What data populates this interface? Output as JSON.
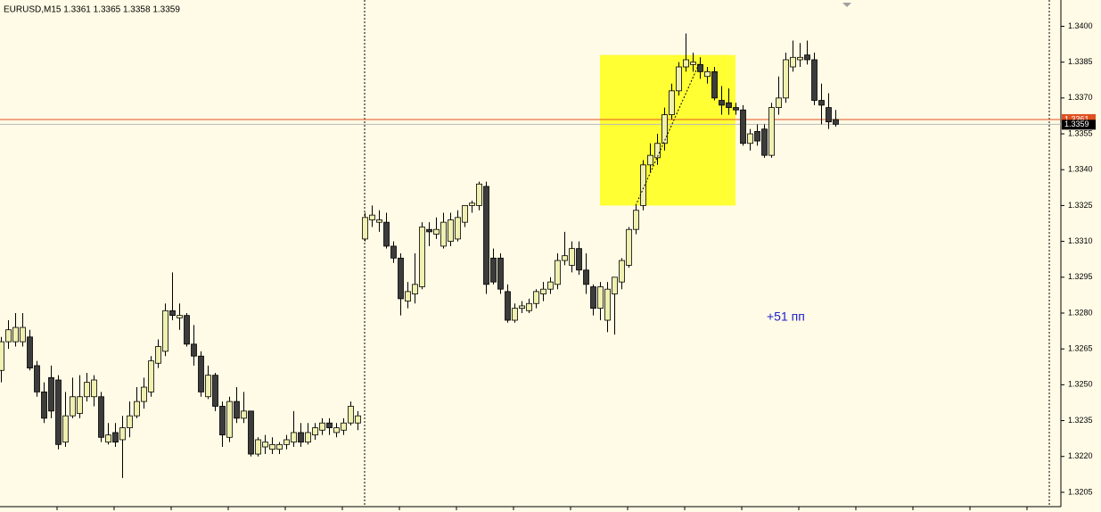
{
  "chart_data": {
    "type": "candlestick",
    "title": "EURUSD,M15  1.3361 1.3365 1.3358 1.3359",
    "annotation": "+51 пп",
    "open": [
      1.3256,
      1.3268,
      1.3268,
      1.3268,
      1.327,
      1.3258,
      1.3247,
      1.3253,
      1.3252,
      1.3226,
      1.3237,
      1.3238,
      1.3245,
      1.3245,
      1.3245,
      1.3226,
      1.323,
      1.3227,
      1.3232,
      1.3237,
      1.3243,
      1.3247,
      1.3259,
      1.3264,
      1.3281,
      1.3278,
      1.3279,
      1.3267,
      1.3262,
      1.3245,
      1.3254,
      1.3241,
      1.3228,
      1.3243,
      1.3236,
      1.3239,
      1.3221,
      1.3224,
      1.3223,
      1.3223,
      1.3225,
      1.3226,
      1.323,
      1.3226,
      1.3229,
      1.3231,
      1.3234,
      1.323,
      1.3231,
      1.3234,
      1.3234,
      1.3311,
      1.3319,
      1.3318,
      1.3318,
      1.3308,
      1.3303,
      1.3285,
      1.3288,
      1.3291,
      1.3315,
      1.3313,
      1.3308,
      1.331,
      1.3311,
      1.3318,
      1.3325,
      1.3325,
      1.3333,
      1.3303,
      1.3303,
      1.3289,
      1.3277,
      1.3282,
      1.3281,
      1.3284,
      1.3288,
      1.329,
      1.3292,
      1.3302,
      1.33,
      1.3307,
      1.3298,
      1.3291,
      1.3282,
      1.3277,
      1.3288,
      1.3293,
      1.33,
      1.3315,
      1.3325,
      1.3342,
      1.3345,
      1.3351,
      1.3363,
      1.3373,
      1.3383,
      1.3384,
      1.3384,
      1.3379,
      1.3381,
      1.3369,
      1.3368,
      1.3366,
      1.3365,
      1.3351,
      1.3356,
      1.3357,
      1.3346,
      1.3366,
      1.337,
      1.3383,
      1.3386,
      1.3388,
      1.3386,
      1.3369,
      1.3366,
      1.3361
    ],
    "high": [
      1.327,
      1.3277,
      1.328,
      1.328,
      1.3273,
      1.326,
      1.3251,
      1.3258,
      1.3254,
      1.3247,
      1.3253,
      1.3254,
      1.3255,
      1.3254,
      1.3247,
      1.3234,
      1.3234,
      1.3237,
      1.3243,
      1.3249,
      1.3253,
      1.3262,
      1.3269,
      1.3284,
      1.3297,
      1.3284,
      1.328,
      1.3275,
      1.3264,
      1.3258,
      1.3255,
      1.3243,
      1.3245,
      1.3249,
      1.3247,
      1.3239,
      1.3228,
      1.3229,
      1.3228,
      1.3226,
      1.3229,
      1.3239,
      1.3234,
      1.3234,
      1.3234,
      1.3236,
      1.3236,
      1.3234,
      1.3236,
      1.3243,
      1.3239,
      1.3322,
      1.3325,
      1.3323,
      1.3322,
      1.331,
      1.3305,
      1.3293,
      1.3305,
      1.3318,
      1.3318,
      1.332,
      1.3322,
      1.3322,
      1.3323,
      1.3325,
      1.3327,
      1.3335,
      1.3335,
      1.3307,
      1.3305,
      1.3292,
      1.3284,
      1.3285,
      1.3286,
      1.329,
      1.3293,
      1.3295,
      1.3305,
      1.3314,
      1.331,
      1.331,
      1.3305,
      1.3292,
      1.3293,
      1.3293,
      1.3295,
      1.3303,
      1.3316,
      1.3325,
      1.3344,
      1.3351,
      1.3355,
      1.3366,
      1.3376,
      1.3385,
      1.3397,
      1.3389,
      1.3387,
      1.3383,
      1.3383,
      1.3375,
      1.3374,
      1.3368,
      1.3367,
      1.3357,
      1.3359,
      1.3359,
      1.3368,
      1.3379,
      1.3389,
      1.3394,
      1.3393,
      1.3394,
      1.3389,
      1.3376,
      1.3372,
      1.3365
    ],
    "low": [
      1.3251,
      1.3265,
      1.3266,
      1.3266,
      1.3256,
      1.3245,
      1.3234,
      1.3236,
      1.3223,
      1.3224,
      1.3236,
      1.3236,
      1.3243,
      1.3241,
      1.3226,
      1.3225,
      1.3224,
      1.3211,
      1.3228,
      1.3236,
      1.324,
      1.3245,
      1.3257,
      1.3262,
      1.3277,
      1.3273,
      1.3266,
      1.3258,
      1.3245,
      1.3244,
      1.3239,
      1.3224,
      1.3226,
      1.3234,
      1.3234,
      1.322,
      1.322,
      1.3221,
      1.3221,
      1.3221,
      1.3223,
      1.3224,
      1.3224,
      1.3225,
      1.3227,
      1.3229,
      1.3229,
      1.3228,
      1.3229,
      1.3233,
      1.3231,
      1.331,
      1.3316,
      1.3314,
      1.3307,
      1.3301,
      1.3279,
      1.3282,
      1.3284,
      1.329,
      1.3308,
      1.3311,
      1.3307,
      1.3308,
      1.331,
      1.3316,
      1.3322,
      1.3323,
      1.3288,
      1.3292,
      1.3288,
      1.3276,
      1.3276,
      1.328,
      1.328,
      1.3282,
      1.3285,
      1.3288,
      1.329,
      1.33,
      1.3297,
      1.3296,
      1.3288,
      1.3279,
      1.3277,
      1.3272,
      1.3271,
      1.329,
      1.3299,
      1.3313,
      1.3323,
      1.3339,
      1.3342,
      1.3348,
      1.3361,
      1.3371,
      1.3381,
      1.3381,
      1.3378,
      1.3376,
      1.3369,
      1.3363,
      1.3363,
      1.3363,
      1.335,
      1.3348,
      1.335,
      1.3345,
      1.3345,
      1.3363,
      1.3368,
      1.3381,
      1.3383,
      1.3384,
      1.3367,
      1.3359,
      1.3357,
      1.3358
    ],
    "close": [
      1.3268,
      1.3273,
      1.3274,
      1.3274,
      1.3257,
      1.3247,
      1.3236,
      1.3239,
      1.3225,
      1.3237,
      1.3245,
      1.3245,
      1.3251,
      1.3252,
      1.3228,
      1.3229,
      1.3226,
      1.3232,
      1.3237,
      1.3243,
      1.3249,
      1.326,
      1.3266,
      1.3281,
      1.3279,
      1.3279,
      1.3267,
      1.3262,
      1.3247,
      1.3254,
      1.3241,
      1.3229,
      1.3243,
      1.3236,
      1.3239,
      1.3221,
      1.3227,
      1.3226,
      1.3225,
      1.3225,
      1.3227,
      1.323,
      1.3226,
      1.323,
      1.3232,
      1.3234,
      1.3232,
      1.3232,
      1.3234,
      1.3241,
      1.3237,
      1.332,
      1.3321,
      1.3319,
      1.3308,
      1.3303,
      1.3286,
      1.3289,
      1.3292,
      1.3316,
      1.3314,
      1.3315,
      1.3318,
      1.3319,
      1.332,
      1.3325,
      1.3326,
      1.3334,
      1.3292,
      1.3293,
      1.329,
      1.3277,
      1.3282,
      1.3283,
      1.3284,
      1.3289,
      1.329,
      1.3293,
      1.3302,
      1.3304,
      1.3307,
      1.3298,
      1.3292,
      1.3282,
      1.3291,
      1.329,
      1.3295,
      1.3302,
      1.3315,
      1.3323,
      1.3342,
      1.3346,
      1.3351,
      1.3363,
      1.3373,
      1.3383,
      1.3386,
      1.3385,
      1.3381,
      1.3381,
      1.337,
      1.3367,
      1.3366,
      1.3365,
      1.3351,
      1.3355,
      1.3352,
      1.3346,
      1.3366,
      1.337,
      1.3386,
      1.3387,
      1.3387,
      1.3386,
      1.3369,
      1.3367,
      1.336,
      1.3359
    ],
    "up_color": "#f0f0b0",
    "down_color": "#3c3c3c",
    "ylim": [
      1.3199,
      1.3411
    ],
    "yticks": [
      {
        "value": 1.34,
        "label": "1.3400"
      },
      1.3385,
      {
        "value": 1.337,
        "label": "1.3370"
      },
      1.3355,
      {
        "value": 1.334,
        "label": "1.3340"
      },
      1.3325,
      {
        "value": 1.331,
        "label": "1.3310"
      },
      1.3295,
      {
        "value": 1.328,
        "label": "1.3280"
      },
      1.3265,
      {
        "value": 1.325,
        "label": "1.3250"
      },
      1.3235,
      {
        "value": 1.322,
        "label": "1.3220"
      },
      1.3205
    ],
    "bid": 1.3359,
    "ask": 1.3361,
    "highlight": {
      "from": 84,
      "to": 103,
      "low": 1.3325,
      "high": 1.3388,
      "color": "#ffff33"
    },
    "trendline": {
      "from": 89,
      "to": 98,
      "start": 1.3325,
      "end": 1.3385
    }
  }
}
